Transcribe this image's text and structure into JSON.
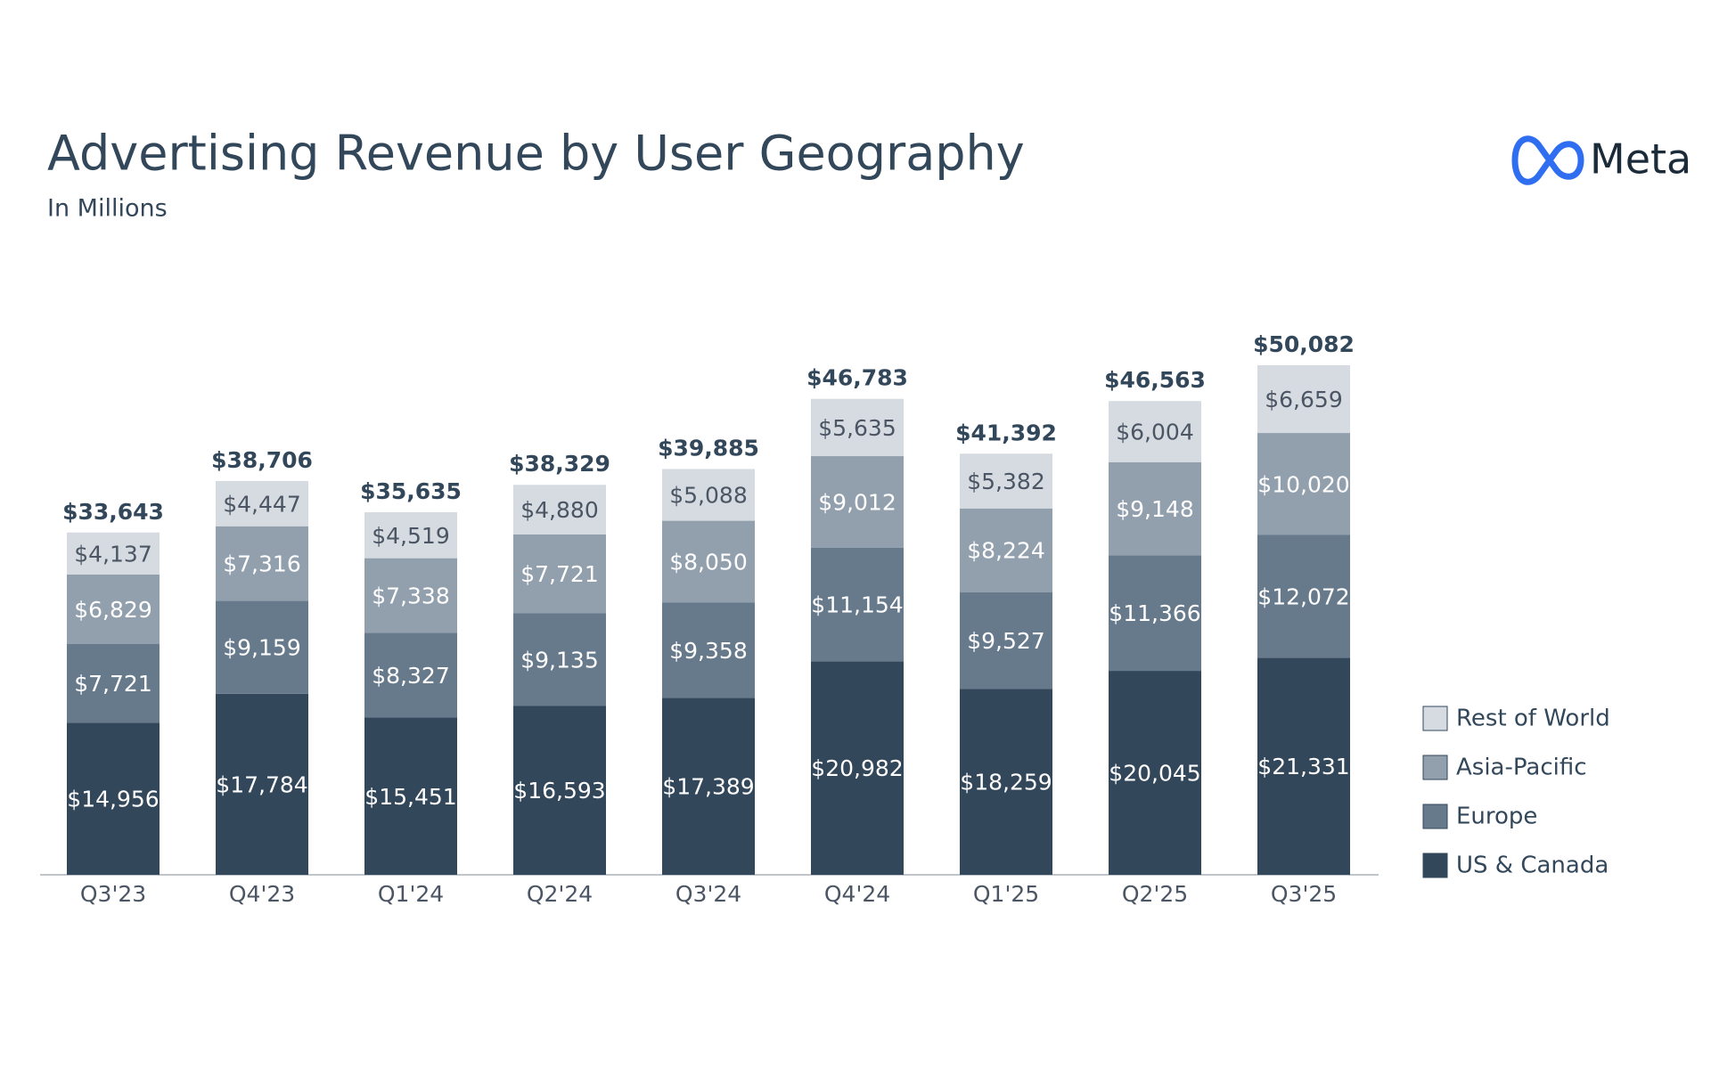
{
  "chart_data": {
    "type": "stacked-bar",
    "title": "Advertising Revenue by User Geography",
    "subtitle": "In Millions",
    "logo": "Meta",
    "categories": [
      "Q3'23",
      "Q4'23",
      "Q1'24",
      "Q2'24",
      "Q3'24",
      "Q4'24",
      "Q1'25",
      "Q2'25",
      "Q3'25"
    ],
    "series": [
      {
        "name": "US & Canada",
        "color": "#33475b",
        "label_color": "#ffffff",
        "values": [
          14956,
          17784,
          15451,
          16593,
          17389,
          20982,
          18259,
          20045,
          21331
        ],
        "value_labels": [
          "$14,956",
          "$17,784",
          "$15,451",
          "$16,593",
          "$17,389",
          "$20,982",
          "$18,259",
          "$20,045",
          "$21,331"
        ]
      },
      {
        "name": "Europe",
        "color": "#677a8c",
        "label_color": "#ffffff",
        "values": [
          7721,
          9159,
          8327,
          9135,
          9358,
          11154,
          9527,
          11366,
          12072
        ],
        "value_labels": [
          "$7,721",
          "$9,159",
          "$8,327",
          "$9,135",
          "$9,358",
          "$11,154",
          "$9,527",
          "$11,366",
          "$12,072"
        ]
      },
      {
        "name": "Asia-Pacific",
        "color": "#929fad",
        "label_color": "#ffffff",
        "values": [
          6829,
          7316,
          7338,
          7721,
          8050,
          9012,
          8224,
          9148,
          10020
        ],
        "value_labels": [
          "$6,829",
          "$7,316",
          "$7,338",
          "$7,721",
          "$8,050",
          "$9,012",
          "$8,224",
          "$9,148",
          "$10,020"
        ]
      },
      {
        "name": "Rest of World",
        "color": "#d5dbe0",
        "label_color": "#4b5563",
        "values": [
          4137,
          4447,
          4519,
          4880,
          5088,
          5635,
          5382,
          6004,
          6659
        ],
        "value_labels": [
          "$4,137",
          "$4,447",
          "$4,519",
          "$4,880",
          "$5,088",
          "$5,635",
          "$5,382",
          "$6,004",
          "$6,659"
        ]
      }
    ],
    "totals": [
      33643,
      38706,
      35635,
      38329,
      39885,
      46783,
      41392,
      46563,
      50082
    ],
    "total_labels": [
      "$33,643",
      "$38,706",
      "$35,635",
      "$38,329",
      "$39,885",
      "$46,783",
      "$41,392",
      "$46,563",
      "$50,082"
    ]
  }
}
